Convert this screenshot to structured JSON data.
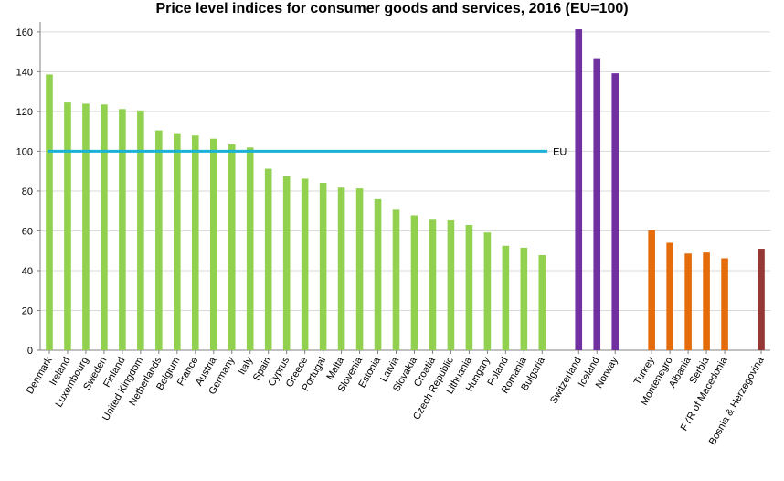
{
  "chart_data": {
    "type": "bar",
    "title": "Price level indices for consumer goods and services, 2016 (EU=100)",
    "xlabel": "",
    "ylabel": "",
    "ylim": [
      0,
      165
    ],
    "yticks": [
      0,
      20,
      40,
      60,
      80,
      100,
      120,
      140,
      160
    ],
    "grid": true,
    "reference_line": {
      "label": "EU",
      "value": 100,
      "color": "#1ab2d6"
    },
    "groups": [
      {
        "color": "#92d050",
        "categories": [
          "Denmark",
          "Ireland",
          "Luxembourg",
          "Sweden",
          "Finland",
          "United Kingdom",
          "Netherlands",
          "Belgium",
          "France",
          "Austria",
          "Germany",
          "Italy",
          "Spain",
          "Cyprus",
          "Greece",
          "Portugal",
          "Malta",
          "Slovenia",
          "Estonia",
          "Latvia",
          "Slovakia",
          "Croatia",
          "Czech Republic",
          "Lithuania",
          "Hungary",
          "Poland",
          "Romania",
          "Bulgaria"
        ],
        "values": [
          138.6,
          124.5,
          123.9,
          123.5,
          121.2,
          120.5,
          110.5,
          109.1,
          107.9,
          106.3,
          103.5,
          101.9,
          91.2,
          87.6,
          86.2,
          84.1,
          81.7,
          81.3,
          75.9,
          70.6,
          67.8,
          65.6,
          65.3,
          63.0,
          59.2,
          52.5,
          51.5,
          47.8
        ]
      },
      {
        "color": "#7030a0",
        "categories": [
          "Switzerland",
          "Iceland",
          "Norway"
        ],
        "values": [
          161.3,
          146.8,
          139.2
        ]
      },
      {
        "color": "#e46c0a",
        "categories": [
          "Turkey",
          "Montenegro",
          "Albania",
          "Serbia",
          "FYR of Macedonia"
        ],
        "values": [
          60.2,
          54.0,
          48.6,
          49.1,
          46.2
        ]
      },
      {
        "color": "#953735",
        "categories": [
          "Bosnia & Herzegovina"
        ],
        "values": [
          51.0
        ]
      }
    ]
  }
}
